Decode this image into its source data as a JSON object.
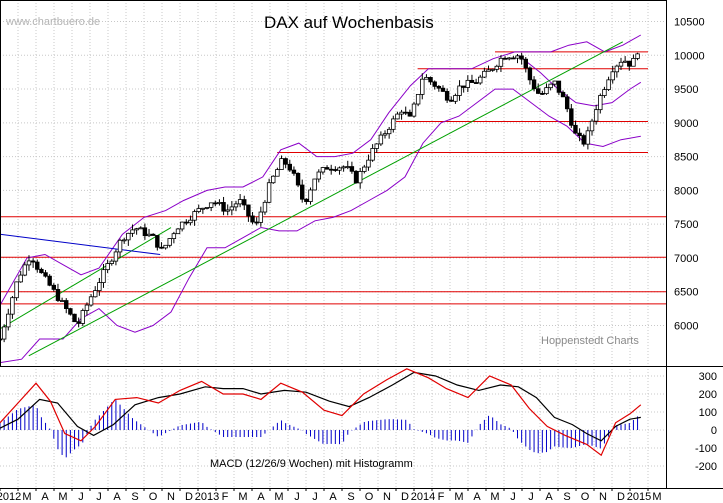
{
  "watermark": "www.chartbuero.de",
  "title": "DAX auf Wochenbasis",
  "source_note": "Hoppenstedt Charts",
  "macd_label": "MACD (12/26/9 Wochen) mit Histogramm",
  "colors": {
    "background": "#ffffff",
    "grid": "#c8c8c8",
    "candle": "#000000",
    "bollinger": "#8a00c8",
    "support_resistance": "#e00000",
    "uptrend": "#00a000",
    "downtrend": "#0000c8",
    "macd": "#000000",
    "signal": "#e00000",
    "histogram": "#0000c8"
  },
  "chart_data": [
    {
      "type": "candlestick",
      "title": "DAX auf Wochenbasis",
      "ylim": [
        5400,
        10700
      ],
      "yticks": [
        6000,
        6500,
        7000,
        7500,
        8000,
        8500,
        9000,
        9500,
        10000,
        10500
      ],
      "xticks": [
        "2012",
        "M",
        "A",
        "M",
        "J",
        "J",
        "A",
        "S",
        "O",
        "N",
        "D",
        "2013",
        "F",
        "M",
        "A",
        "M",
        "J",
        "J",
        "A",
        "S",
        "O",
        "N",
        "D",
        "2014",
        "F",
        "M",
        "A",
        "M",
        "J",
        "J",
        "A",
        "S",
        "O",
        "N",
        "D",
        "2015",
        "M"
      ],
      "price_path": [
        {
          "x": 0.0,
          "y": 5800
        },
        {
          "x": 1.0,
          "y": 6700
        },
        {
          "x": 1.7,
          "y": 7050
        },
        {
          "x": 2.2,
          "y": 6800
        },
        {
          "x": 3.0,
          "y": 6500
        },
        {
          "x": 4.3,
          "y": 6000
        },
        {
          "x": 5.0,
          "y": 6400
        },
        {
          "x": 6.0,
          "y": 6900
        },
        {
          "x": 6.8,
          "y": 7300
        },
        {
          "x": 7.5,
          "y": 7450
        },
        {
          "x": 8.5,
          "y": 7300
        },
        {
          "x": 9.0,
          "y": 7100
        },
        {
          "x": 9.8,
          "y": 7450
        },
        {
          "x": 11.0,
          "y": 7700
        },
        {
          "x": 11.8,
          "y": 7850
        },
        {
          "x": 12.6,
          "y": 7700
        },
        {
          "x": 13.3,
          "y": 7850
        },
        {
          "x": 14.2,
          "y": 7450
        },
        {
          "x": 15.0,
          "y": 8100
        },
        {
          "x": 15.7,
          "y": 8450
        },
        {
          "x": 16.2,
          "y": 8300
        },
        {
          "x": 16.9,
          "y": 7800
        },
        {
          "x": 17.5,
          "y": 8200
        },
        {
          "x": 18.2,
          "y": 8350
        },
        {
          "x": 19.2,
          "y": 8350
        },
        {
          "x": 19.8,
          "y": 8150
        },
        {
          "x": 20.6,
          "y": 8550
        },
        {
          "x": 21.5,
          "y": 8900
        },
        {
          "x": 22.3,
          "y": 9200
        },
        {
          "x": 22.8,
          "y": 9050
        },
        {
          "x": 23.5,
          "y": 9700
        },
        {
          "x": 24.2,
          "y": 9550
        },
        {
          "x": 25.0,
          "y": 9350
        },
        {
          "x": 25.6,
          "y": 9550
        },
        {
          "x": 26.4,
          "y": 9600
        },
        {
          "x": 27.3,
          "y": 9800
        },
        {
          "x": 28.0,
          "y": 10000
        },
        {
          "x": 28.9,
          "y": 10000
        },
        {
          "x": 29.5,
          "y": 9600
        },
        {
          "x": 30.0,
          "y": 9400
        },
        {
          "x": 30.8,
          "y": 9600
        },
        {
          "x": 31.4,
          "y": 9300
        },
        {
          "x": 32.0,
          "y": 8800
        },
        {
          "x": 32.5,
          "y": 8700
        },
        {
          "x": 33.2,
          "y": 9300
        },
        {
          "x": 34.0,
          "y": 9800
        },
        {
          "x": 34.6,
          "y": 9950
        },
        {
          "x": 35.1,
          "y": 9850
        },
        {
          "x": 35.6,
          "y": 10200
        }
      ],
      "horizontal_lines": [
        10050,
        9800,
        9020,
        8560,
        7610,
        7010,
        6500,
        6320
      ],
      "resistance_segments": [
        {
          "from_x": 15.4,
          "to_x": 36.0,
          "y": 8560
        },
        {
          "from_x": 22.0,
          "to_x": 36.0,
          "y": 9020
        },
        {
          "from_x": 23.2,
          "to_x": 36.0,
          "y": 9800
        },
        {
          "from_x": 27.5,
          "to_x": 36.0,
          "y": 10050
        }
      ],
      "trendlines": [
        {
          "name": "uptrend",
          "x": [
            1.6,
            34.6
          ],
          "y": [
            5550,
            10200
          ]
        },
        {
          "name": "uptrend",
          "x": [
            0.0,
            9.5
          ],
          "y": [
            5950,
            7450
          ]
        },
        {
          "name": "downtrend",
          "x": [
            0.0,
            8.9
          ],
          "y": [
            7350,
            7050
          ]
        }
      ],
      "bollinger_upper": [
        {
          "x": 0.0,
          "y": 6300
        },
        {
          "x": 1.5,
          "y": 7000
        },
        {
          "x": 2.5,
          "y": 7050
        },
        {
          "x": 3.5,
          "y": 6900
        },
        {
          "x": 4.5,
          "y": 6750
        },
        {
          "x": 5.5,
          "y": 6850
        },
        {
          "x": 6.8,
          "y": 7350
        },
        {
          "x": 8.0,
          "y": 7600
        },
        {
          "x": 9.2,
          "y": 7700
        },
        {
          "x": 10.2,
          "y": 7850
        },
        {
          "x": 11.5,
          "y": 8000
        },
        {
          "x": 12.5,
          "y": 8050
        },
        {
          "x": 13.5,
          "y": 8050
        },
        {
          "x": 14.6,
          "y": 8200
        },
        {
          "x": 15.6,
          "y": 8600
        },
        {
          "x": 16.6,
          "y": 8700
        },
        {
          "x": 17.6,
          "y": 8500
        },
        {
          "x": 18.6,
          "y": 8500
        },
        {
          "x": 19.6,
          "y": 8550
        },
        {
          "x": 20.6,
          "y": 8750
        },
        {
          "x": 21.6,
          "y": 9150
        },
        {
          "x": 22.8,
          "y": 9550
        },
        {
          "x": 23.8,
          "y": 9800
        },
        {
          "x": 25.0,
          "y": 9800
        },
        {
          "x": 26.2,
          "y": 9800
        },
        {
          "x": 27.4,
          "y": 9950
        },
        {
          "x": 28.6,
          "y": 10050
        },
        {
          "x": 29.6,
          "y": 10050
        },
        {
          "x": 30.6,
          "y": 10050
        },
        {
          "x": 31.6,
          "y": 10150
        },
        {
          "x": 32.6,
          "y": 10200
        },
        {
          "x": 33.6,
          "y": 10050
        },
        {
          "x": 34.6,
          "y": 10150
        },
        {
          "x": 35.6,
          "y": 10300
        }
      ],
      "bollinger_lower": [
        {
          "x": 0.0,
          "y": 5450
        },
        {
          "x": 1.2,
          "y": 5500
        },
        {
          "x": 2.2,
          "y": 5800
        },
        {
          "x": 3.5,
          "y": 5800
        },
        {
          "x": 4.5,
          "y": 6100
        },
        {
          "x": 5.5,
          "y": 6250
        },
        {
          "x": 6.5,
          "y": 6000
        },
        {
          "x": 7.5,
          "y": 5900
        },
        {
          "x": 8.5,
          "y": 6000
        },
        {
          "x": 9.5,
          "y": 6200
        },
        {
          "x": 10.5,
          "y": 6700
        },
        {
          "x": 11.5,
          "y": 7150
        },
        {
          "x": 12.5,
          "y": 7150
        },
        {
          "x": 13.5,
          "y": 7300
        },
        {
          "x": 14.5,
          "y": 7450
        },
        {
          "x": 15.5,
          "y": 7400
        },
        {
          "x": 16.5,
          "y": 7400
        },
        {
          "x": 17.5,
          "y": 7550
        },
        {
          "x": 18.5,
          "y": 7600
        },
        {
          "x": 19.5,
          "y": 7700
        },
        {
          "x": 20.5,
          "y": 7850
        },
        {
          "x": 21.5,
          "y": 8000
        },
        {
          "x": 22.5,
          "y": 8200
        },
        {
          "x": 23.5,
          "y": 8700
        },
        {
          "x": 24.5,
          "y": 9000
        },
        {
          "x": 25.5,
          "y": 9100
        },
        {
          "x": 26.5,
          "y": 9300
        },
        {
          "x": 27.5,
          "y": 9500
        },
        {
          "x": 28.5,
          "y": 9500
        },
        {
          "x": 29.5,
          "y": 9300
        },
        {
          "x": 30.5,
          "y": 9100
        },
        {
          "x": 31.5,
          "y": 8950
        },
        {
          "x": 32.5,
          "y": 8700
        },
        {
          "x": 33.5,
          "y": 8650
        },
        {
          "x": 34.5,
          "y": 8750
        },
        {
          "x": 35.6,
          "y": 8800
        }
      ],
      "bollinger_middle": [
        {
          "x": 28.8,
          "y": 10000
        },
        {
          "x": 30.0,
          "y": 9750
        },
        {
          "x": 31.0,
          "y": 9500
        },
        {
          "x": 32.0,
          "y": 9300
        },
        {
          "x": 33.0,
          "y": 9250
        },
        {
          "x": 34.0,
          "y": 9300
        },
        {
          "x": 35.0,
          "y": 9500
        },
        {
          "x": 35.6,
          "y": 9600
        }
      ]
    },
    {
      "type": "line",
      "title": "MACD (12/26/9 Wochen) mit Histogramm",
      "ylim": [
        -300,
        300
      ],
      "yticks": [
        300,
        200,
        100,
        0,
        -100,
        -200
      ],
      "series": [
        {
          "values": [
            {
              "x": 0.0,
              "y": 10
            },
            {
              "x": 1.0,
              "y": 60
            },
            {
              "x": 2.2,
              "y": 170
            },
            {
              "x": 3.2,
              "y": 150
            },
            {
              "x": 4.3,
              "y": 20
            },
            {
              "x": 5.2,
              "y": -30
            },
            {
              "x": 6.3,
              "y": 30
            },
            {
              "x": 7.5,
              "y": 140
            },
            {
              "x": 8.8,
              "y": 180
            },
            {
              "x": 10.0,
              "y": 200
            },
            {
              "x": 11.4,
              "y": 240
            },
            {
              "x": 12.4,
              "y": 230
            },
            {
              "x": 13.5,
              "y": 230
            },
            {
              "x": 14.5,
              "y": 200
            },
            {
              "x": 15.8,
              "y": 220
            },
            {
              "x": 17.0,
              "y": 210
            },
            {
              "x": 18.3,
              "y": 160
            },
            {
              "x": 19.4,
              "y": 130
            },
            {
              "x": 20.5,
              "y": 180
            },
            {
              "x": 21.8,
              "y": 250
            },
            {
              "x": 23.0,
              "y": 320
            },
            {
              "x": 24.2,
              "y": 300
            },
            {
              "x": 25.4,
              "y": 250
            },
            {
              "x": 26.6,
              "y": 220
            },
            {
              "x": 27.8,
              "y": 250
            },
            {
              "x": 28.8,
              "y": 240
            },
            {
              "x": 29.8,
              "y": 180
            },
            {
              "x": 30.8,
              "y": 70
            },
            {
              "x": 31.8,
              "y": 30
            },
            {
              "x": 32.6,
              "y": -20
            },
            {
              "x": 33.4,
              "y": -60
            },
            {
              "x": 34.2,
              "y": 20
            },
            {
              "x": 35.0,
              "y": 60
            },
            {
              "x": 35.6,
              "y": 70
            }
          ]
        },
        {
          "values": [
            {
              "x": 0.0,
              "y": 40
            },
            {
              "x": 1.0,
              "y": 150
            },
            {
              "x": 2.0,
              "y": 260
            },
            {
              "x": 2.8,
              "y": 160
            },
            {
              "x": 3.6,
              "y": -20
            },
            {
              "x": 4.5,
              "y": -60
            },
            {
              "x": 5.3,
              "y": 20
            },
            {
              "x": 6.4,
              "y": 170
            },
            {
              "x": 7.6,
              "y": 180
            },
            {
              "x": 8.8,
              "y": 150
            },
            {
              "x": 10.0,
              "y": 220
            },
            {
              "x": 11.2,
              "y": 270
            },
            {
              "x": 12.4,
              "y": 200
            },
            {
              "x": 13.5,
              "y": 200
            },
            {
              "x": 14.5,
              "y": 170
            },
            {
              "x": 15.6,
              "y": 260
            },
            {
              "x": 16.8,
              "y": 210
            },
            {
              "x": 18.0,
              "y": 110
            },
            {
              "x": 19.0,
              "y": 80
            },
            {
              "x": 20.2,
              "y": 200
            },
            {
              "x": 21.5,
              "y": 280
            },
            {
              "x": 22.6,
              "y": 340
            },
            {
              "x": 23.8,
              "y": 290
            },
            {
              "x": 24.8,
              "y": 230
            },
            {
              "x": 26.0,
              "y": 180
            },
            {
              "x": 27.2,
              "y": 300
            },
            {
              "x": 28.4,
              "y": 250
            },
            {
              "x": 29.4,
              "y": 120
            },
            {
              "x": 30.4,
              "y": 20
            },
            {
              "x": 31.4,
              "y": -30
            },
            {
              "x": 32.6,
              "y": -80
            },
            {
              "x": 33.4,
              "y": -140
            },
            {
              "x": 34.2,
              "y": 40
            },
            {
              "x": 35.0,
              "y": 90
            },
            {
              "x": 35.6,
              "y": 140
            }
          ]
        }
      ]
    }
  ]
}
